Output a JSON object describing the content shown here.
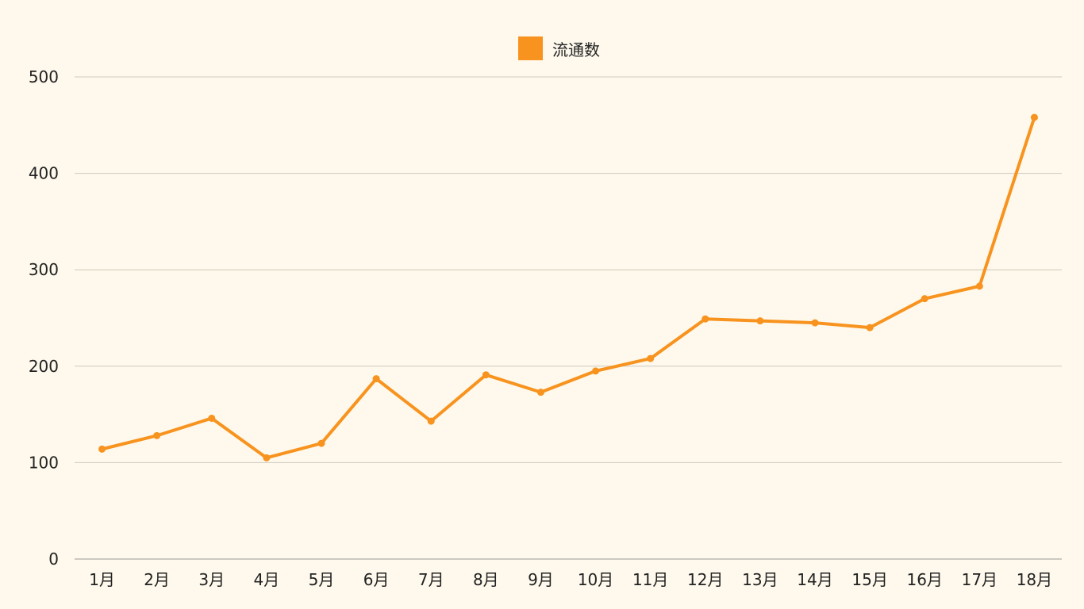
{
  "chart_data": {
    "type": "line",
    "title": "",
    "xlabel": "",
    "ylabel": "",
    "categories": [
      "1月",
      "2月",
      "3月",
      "4月",
      "5月",
      "6月",
      "7月",
      "8月",
      "9月",
      "10月",
      "11月",
      "12月",
      "13月",
      "14月",
      "15月",
      "16月",
      "17月",
      "18月"
    ],
    "series": [
      {
        "name": "流通数",
        "color": "#f7931e",
        "values": [
          114,
          128,
          146,
          105,
          120,
          187,
          143,
          191,
          173,
          195,
          208,
          249,
          247,
          245,
          240,
          270,
          283,
          458
        ]
      }
    ],
    "ylim": [
      0,
      500
    ],
    "yticks": [
      "0",
      "100",
      "200",
      "300",
      "400",
      "500"
    ],
    "grid": true,
    "legend": "top-center"
  }
}
